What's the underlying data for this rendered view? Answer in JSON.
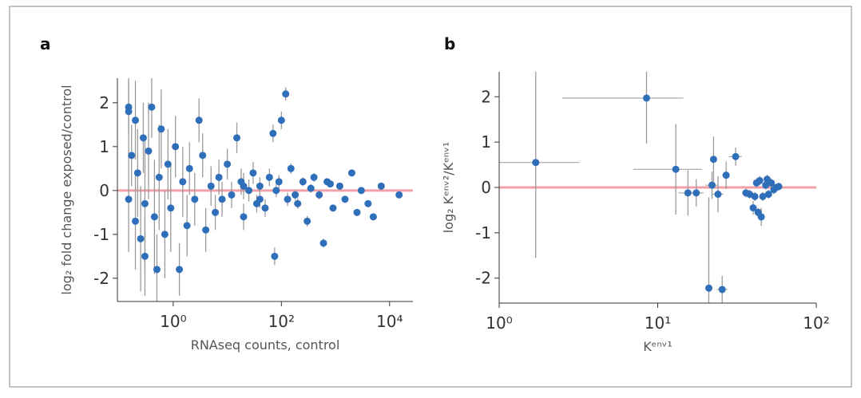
{
  "chart_data": [
    {
      "type": "scatter",
      "panel_label": "a",
      "xlabel": "RNAseq counts, control",
      "ylabel": "log₂ fold change exposed/control",
      "log_x": true,
      "color": "#2f6fba",
      "error_color": "#9a9a9a",
      "hline": 0,
      "hline_color": "#f2a0a8",
      "xlim": [
        0.093,
        27000
      ],
      "ylim": [
        -2.53,
        2.56
      ],
      "xticks": [
        {
          "value": 1,
          "label": "10⁰"
        },
        {
          "value": 100,
          "label": "10²"
        },
        {
          "value": 10000,
          "label": "10⁴"
        }
      ],
      "yticks": [
        -2,
        -1,
        0,
        1,
        2
      ],
      "x": [
        0.15,
        0.15,
        0.15,
        0.17,
        0.2,
        0.2,
        0.22,
        0.25,
        0.28,
        0.3,
        0.3,
        0.35,
        0.4,
        0.45,
        0.5,
        0.55,
        0.6,
        0.7,
        0.8,
        0.9,
        1.1,
        1.3,
        1.5,
        1.8,
        2,
        2.5,
        3,
        3.5,
        4,
        5,
        6,
        7,
        8,
        10,
        12,
        15,
        18,
        20,
        25,
        30,
        35,
        40,
        50,
        60,
        70,
        75,
        80,
        100,
        120,
        130,
        150,
        200,
        250,
        300,
        400,
        500,
        600,
        700,
        900,
        1200,
        1500,
        2000,
        2500,
        3000,
        4000,
        5000,
        7000,
        15000,
        20,
        40,
        90,
        180,
        350,
        800
      ],
      "y": [
        1.9,
        1.8,
        -0.2,
        0.8,
        1.6,
        -0.7,
        0.4,
        -1.1,
        1.2,
        -0.3,
        -1.5,
        0.9,
        1.9,
        -0.6,
        -1.8,
        0.3,
        1.4,
        -1.0,
        0.6,
        -0.4,
        1.0,
        -1.8,
        0.2,
        -0.8,
        0.5,
        -0.2,
        1.6,
        0.8,
        -0.9,
        0.1,
        -0.5,
        0.3,
        -0.2,
        0.6,
        -0.1,
        1.2,
        0.2,
        -0.6,
        0.0,
        0.4,
        -0.3,
        0.1,
        -0.4,
        0.3,
        1.3,
        -1.5,
        0.0,
        1.6,
        2.2,
        -0.2,
        0.5,
        -0.3,
        0.2,
        -0.7,
        0.3,
        -0.1,
        -1.2,
        0.2,
        -0.4,
        0.1,
        -0.2,
        0.4,
        -0.5,
        0.0,
        -0.3,
        -0.6,
        0.1,
        -0.1,
        0.1,
        -0.2,
        0.2,
        -0.1,
        0.05,
        0.15
      ],
      "yerr": [
        0.6,
        0.8,
        1.2,
        0.7,
        0.9,
        1.1,
        1.0,
        1.2,
        0.8,
        1.5,
        0.9,
        1.1,
        0.7,
        1.3,
        0.8,
        1.2,
        0.9,
        1.0,
        0.8,
        1.0,
        0.7,
        0.6,
        0.8,
        0.7,
        0.6,
        0.6,
        0.5,
        0.5,
        0.5,
        0.45,
        0.4,
        0.4,
        0.4,
        0.35,
        0.3,
        0.35,
        0.3,
        0.3,
        0.25,
        0.25,
        0.2,
        0.2,
        0.2,
        0.2,
        0.2,
        0.2,
        0.15,
        0.2,
        0.15,
        0.15,
        0.12,
        0.12,
        0.1,
        0.12,
        0.1,
        0.1,
        0.1,
        0.08,
        0.08,
        0.08,
        0.08,
        0.07,
        0.07,
        0.06,
        0.06,
        0.06,
        0.06,
        0.06,
        0.3,
        0.2,
        0.15,
        0.12,
        0.1,
        0.08
      ]
    },
    {
      "type": "scatter",
      "panel_label": "b",
      "xlabel": "Kᵉⁿᵛ¹",
      "ylabel": "log₂ Kᵉⁿᵛ²/Kᵉⁿᵛ¹",
      "log_x": true,
      "color": "#2f6fba",
      "error_color": "#9a9a9a",
      "hline": 0,
      "hline_color": "#f2a0a8",
      "xlim": [
        1,
        100
      ],
      "ylim": [
        -2.55,
        2.55
      ],
      "xticks": [
        {
          "value": 1,
          "label": "10⁰"
        },
        {
          "value": 10,
          "label": "10¹"
        },
        {
          "value": 100,
          "label": "10²"
        }
      ],
      "yticks": [
        -2,
        -1,
        0,
        1,
        2
      ],
      "x": [
        1.7,
        8.5,
        13,
        15.5,
        17.5,
        21,
        22,
        22.5,
        24,
        25.5,
        27,
        31,
        36,
        38,
        40,
        41,
        42,
        43,
        44,
        45,
        46,
        48,
        49,
        50,
        52,
        54,
        56,
        58
      ],
      "y": [
        0.55,
        1.97,
        0.4,
        -0.12,
        -0.12,
        -2.22,
        0.05,
        0.62,
        -0.15,
        -2.25,
        0.27,
        0.68,
        -0.12,
        -0.15,
        -0.45,
        -0.2,
        0.1,
        -0.55,
        0.15,
        -0.65,
        -0.2,
        0.05,
        0.18,
        -0.15,
        0.1,
        -0.05,
        0.0,
        0.02
      ],
      "xerr": [
        1.5,
        6,
        6,
        2,
        2,
        1,
        2,
        1,
        2,
        2,
        1.5,
        3,
        2,
        2,
        1,
        2,
        2,
        1,
        2,
        1,
        1.5,
        1.5,
        1.5,
        1.5,
        1.5,
        1.5,
        1.5,
        1.5
      ],
      "yerr": [
        2.1,
        1.0,
        1.0,
        0.5,
        0.3,
        2.0,
        0.3,
        0.5,
        0.4,
        0.3,
        0.3,
        0.2,
        0.1,
        0.1,
        0.15,
        0.1,
        0.1,
        0.1,
        0.1,
        0.2,
        0.1,
        0.1,
        0.1,
        0.1,
        0.1,
        0.1,
        0.08,
        0.08
      ]
    }
  ]
}
